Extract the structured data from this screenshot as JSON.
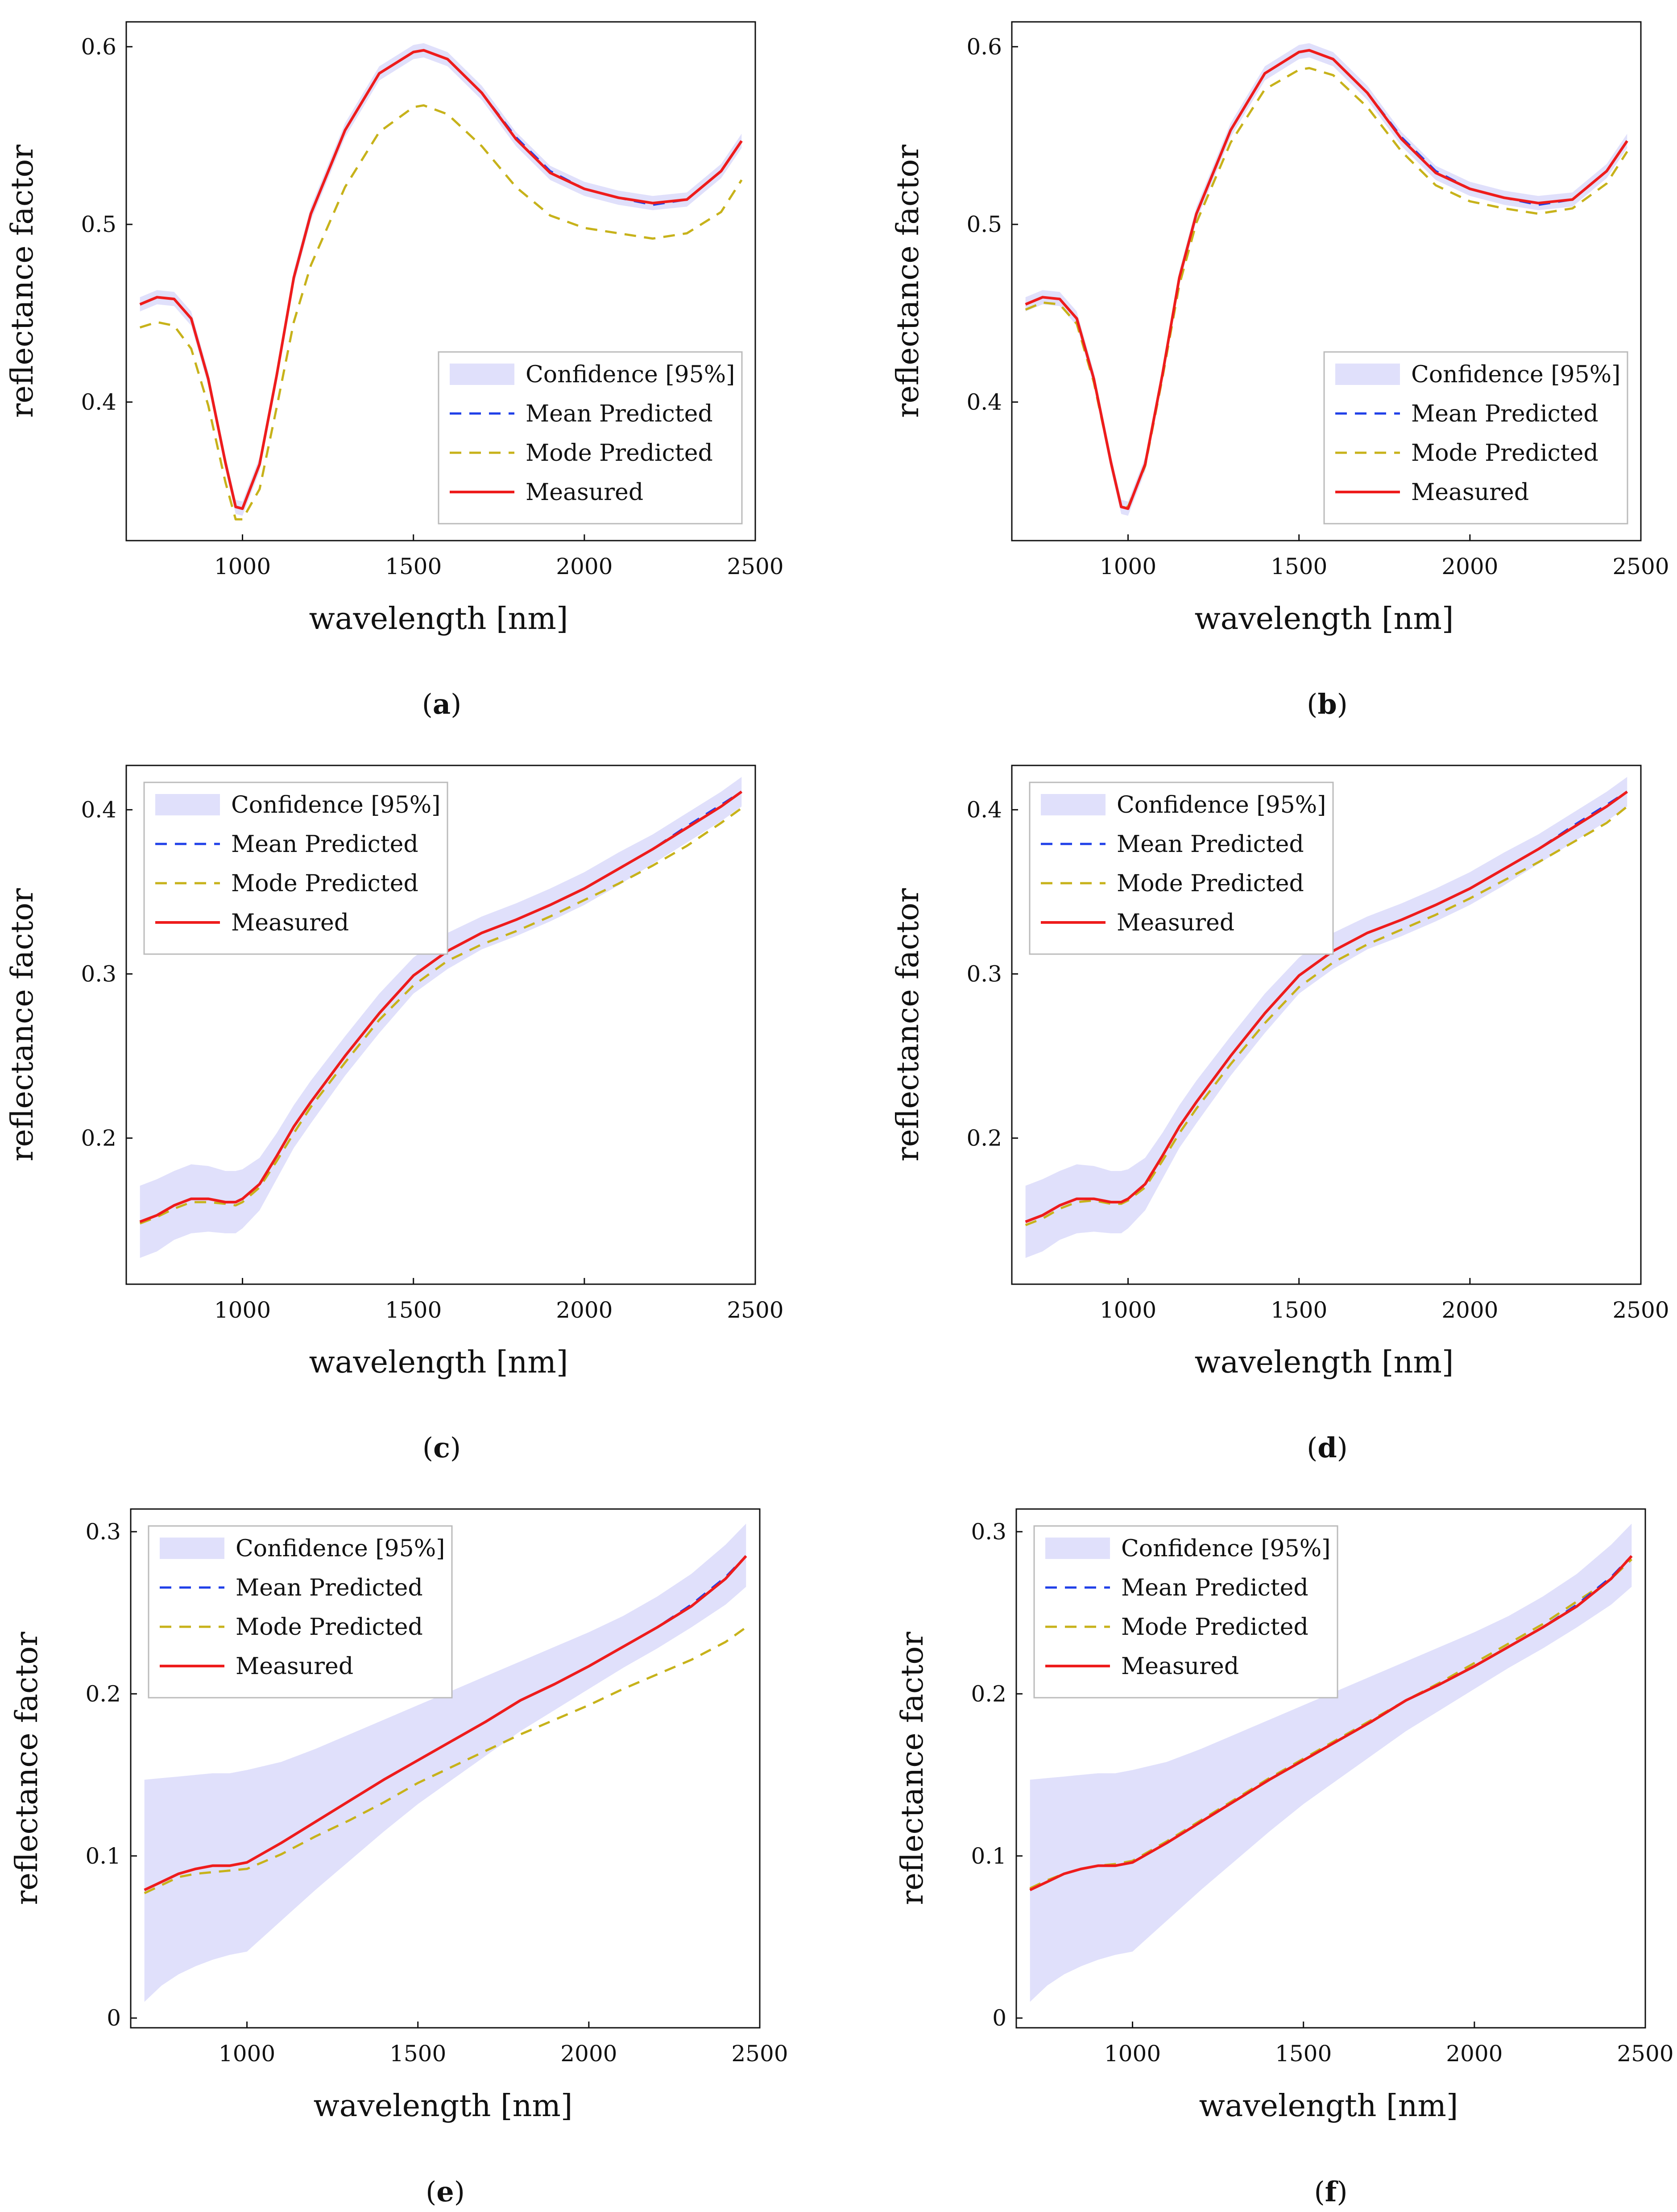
{
  "colors": {
    "confidence": "#e0e0fb",
    "mean": "#1f3fe8",
    "mode": "#c7b21a",
    "measured": "#ee1c1c",
    "axis": "#111111"
  },
  "chart_data": [
    {
      "type": "line",
      "caption_letter": "a",
      "xlabel": "wavelength [nm]",
      "ylabel": "reflectance factor",
      "xlim": [
        660,
        2500
      ],
      "ylim": [
        0.322,
        0.614
      ],
      "xticks": [
        1000,
        1500,
        2000,
        2500
      ],
      "yticks": [
        0.4,
        0.5,
        0.6
      ],
      "ytick_labels": [
        "0.4",
        "0.5",
        "0.6"
      ],
      "legend_position": "bottom-right",
      "legend": [
        "Confidence [95%]",
        "Mean Predicted",
        "Mode Predicted",
        "Measured"
      ],
      "x": [
        700,
        750,
        800,
        850,
        900,
        950,
        980,
        1000,
        1050,
        1100,
        1150,
        1200,
        1300,
        1400,
        1500,
        1530,
        1600,
        1700,
        1800,
        1900,
        2000,
        2100,
        2200,
        2300,
        2400,
        2460
      ],
      "series": [
        {
          "name": "Measured",
          "values": [
            0.455,
            0.459,
            0.458,
            0.447,
            0.413,
            0.366,
            0.341,
            0.34,
            0.365,
            0.415,
            0.47,
            0.506,
            0.553,
            0.585,
            0.597,
            0.598,
            0.593,
            0.574,
            0.548,
            0.529,
            0.52,
            0.515,
            0.512,
            0.514,
            0.53,
            0.547
          ]
        },
        {
          "name": "Mean Predicted",
          "values": [
            0.455,
            0.459,
            0.458,
            0.447,
            0.413,
            0.366,
            0.341,
            0.34,
            0.365,
            0.415,
            0.47,
            0.506,
            0.553,
            0.585,
            0.597,
            0.598,
            0.593,
            0.574,
            0.549,
            0.53,
            0.52,
            0.515,
            0.511,
            0.514,
            0.53,
            0.547
          ]
        },
        {
          "name": "Mode Predicted",
          "values": [
            0.442,
            0.445,
            0.443,
            0.43,
            0.398,
            0.355,
            0.334,
            0.334,
            0.351,
            0.397,
            0.445,
            0.477,
            0.521,
            0.552,
            0.566,
            0.567,
            0.562,
            0.544,
            0.521,
            0.505,
            0.498,
            0.495,
            0.492,
            0.495,
            0.507,
            0.525
          ]
        }
      ],
      "confidence_halfwidth": [
        0.004,
        0.004,
        0.004,
        0.004,
        0.004,
        0.004,
        0.004,
        0.004,
        0.004,
        0.004,
        0.004,
        0.004,
        0.004,
        0.004,
        0.004,
        0.004,
        0.004,
        0.004,
        0.004,
        0.004,
        0.004,
        0.004,
        0.004,
        0.004,
        0.004,
        0.004
      ]
    },
    {
      "type": "line",
      "caption_letter": "b",
      "xlabel": "wavelength [nm]",
      "ylabel": "reflectance factor",
      "xlim": [
        660,
        2500
      ],
      "ylim": [
        0.322,
        0.614
      ],
      "xticks": [
        1000,
        1500,
        2000,
        2500
      ],
      "yticks": [
        0.4,
        0.5,
        0.6
      ],
      "ytick_labels": [
        "0.4",
        "0.5",
        "0.6"
      ],
      "legend_position": "bottom-right",
      "legend": [
        "Confidence [95%]",
        "Mean Predicted",
        "Mode Predicted",
        "Measured"
      ],
      "x": [
        700,
        750,
        800,
        850,
        900,
        950,
        980,
        1000,
        1050,
        1100,
        1150,
        1200,
        1300,
        1400,
        1500,
        1530,
        1600,
        1700,
        1800,
        1900,
        2000,
        2100,
        2200,
        2300,
        2400,
        2460
      ],
      "series": [
        {
          "name": "Measured",
          "values": [
            0.455,
            0.459,
            0.458,
            0.447,
            0.413,
            0.366,
            0.341,
            0.34,
            0.365,
            0.415,
            0.47,
            0.506,
            0.553,
            0.585,
            0.597,
            0.598,
            0.593,
            0.574,
            0.548,
            0.529,
            0.52,
            0.515,
            0.512,
            0.514,
            0.53,
            0.547
          ]
        },
        {
          "name": "Mean Predicted",
          "values": [
            0.455,
            0.459,
            0.458,
            0.447,
            0.413,
            0.366,
            0.341,
            0.34,
            0.365,
            0.415,
            0.47,
            0.506,
            0.553,
            0.585,
            0.597,
            0.598,
            0.593,
            0.574,
            0.549,
            0.53,
            0.52,
            0.515,
            0.511,
            0.514,
            0.53,
            0.547
          ]
        },
        {
          "name": "Mode Predicted",
          "values": [
            0.452,
            0.456,
            0.455,
            0.444,
            0.411,
            0.366,
            0.341,
            0.341,
            0.364,
            0.413,
            0.466,
            0.501,
            0.546,
            0.576,
            0.587,
            0.588,
            0.584,
            0.566,
            0.541,
            0.522,
            0.513,
            0.509,
            0.506,
            0.509,
            0.523,
            0.541
          ]
        }
      ],
      "confidence_halfwidth": [
        0.004,
        0.004,
        0.004,
        0.004,
        0.004,
        0.004,
        0.004,
        0.004,
        0.004,
        0.004,
        0.004,
        0.004,
        0.004,
        0.004,
        0.004,
        0.004,
        0.004,
        0.004,
        0.004,
        0.004,
        0.004,
        0.004,
        0.004,
        0.004,
        0.004,
        0.004
      ]
    },
    {
      "type": "line",
      "caption_letter": "c",
      "xlabel": "wavelength [nm]",
      "ylabel": "reflectance factor",
      "xlim": [
        660,
        2500
      ],
      "ylim": [
        0.111,
        0.427
      ],
      "xticks": [
        1000,
        1500,
        2000,
        2500
      ],
      "yticks": [
        0.2,
        0.3,
        0.4
      ],
      "ytick_labels": [
        "0.2",
        "0.3",
        "0.4"
      ],
      "legend_position": "top-left",
      "legend": [
        "Confidence [95%]",
        "Mean Predicted",
        "Mode Predicted",
        "Measured"
      ],
      "x": [
        700,
        750,
        800,
        850,
        900,
        950,
        980,
        1000,
        1050,
        1100,
        1150,
        1200,
        1300,
        1400,
        1500,
        1600,
        1700,
        1800,
        1900,
        2000,
        2100,
        2200,
        2300,
        2400,
        2460
      ],
      "series": [
        {
          "name": "Measured",
          "values": [
            0.149,
            0.153,
            0.159,
            0.163,
            0.163,
            0.161,
            0.161,
            0.163,
            0.172,
            0.189,
            0.207,
            0.222,
            0.25,
            0.276,
            0.299,
            0.314,
            0.325,
            0.333,
            0.342,
            0.352,
            0.364,
            0.376,
            0.389,
            0.402,
            0.411
          ]
        },
        {
          "name": "Mean Predicted",
          "values": [
            0.149,
            0.153,
            0.159,
            0.163,
            0.163,
            0.161,
            0.161,
            0.163,
            0.172,
            0.189,
            0.207,
            0.222,
            0.25,
            0.276,
            0.299,
            0.314,
            0.325,
            0.333,
            0.342,
            0.352,
            0.364,
            0.376,
            0.39,
            0.403,
            0.411
          ]
        },
        {
          "name": "Mode Predicted",
          "values": [
            0.148,
            0.152,
            0.157,
            0.161,
            0.161,
            0.16,
            0.159,
            0.161,
            0.17,
            0.186,
            0.203,
            0.219,
            0.246,
            0.272,
            0.293,
            0.308,
            0.318,
            0.326,
            0.335,
            0.345,
            0.355,
            0.366,
            0.378,
            0.392,
            0.401
          ]
        }
      ],
      "confidence_halfwidth": [
        0.022,
        0.022,
        0.021,
        0.021,
        0.02,
        0.019,
        0.019,
        0.018,
        0.016,
        0.014,
        0.013,
        0.013,
        0.012,
        0.012,
        0.011,
        0.011,
        0.01,
        0.01,
        0.01,
        0.01,
        0.01,
        0.009,
        0.009,
        0.009,
        0.009
      ]
    },
    {
      "type": "line",
      "caption_letter": "d",
      "xlabel": "wavelength [nm]",
      "ylabel": "reflectance factor",
      "xlim": [
        660,
        2500
      ],
      "ylim": [
        0.111,
        0.427
      ],
      "xticks": [
        1000,
        1500,
        2000,
        2500
      ],
      "yticks": [
        0.2,
        0.3,
        0.4
      ],
      "ytick_labels": [
        "0.2",
        "0.3",
        "0.4"
      ],
      "legend_position": "top-left",
      "legend": [
        "Confidence [95%]",
        "Mean Predicted",
        "Mode Predicted",
        "Measured"
      ],
      "x": [
        700,
        750,
        800,
        850,
        900,
        950,
        980,
        1000,
        1050,
        1100,
        1150,
        1200,
        1300,
        1400,
        1500,
        1600,
        1700,
        1800,
        1900,
        2000,
        2100,
        2200,
        2300,
        2400,
        2460
      ],
      "series": [
        {
          "name": "Measured",
          "values": [
            0.149,
            0.153,
            0.159,
            0.163,
            0.163,
            0.161,
            0.161,
            0.163,
            0.172,
            0.189,
            0.207,
            0.222,
            0.25,
            0.276,
            0.299,
            0.314,
            0.325,
            0.333,
            0.342,
            0.352,
            0.364,
            0.376,
            0.389,
            0.402,
            0.411
          ]
        },
        {
          "name": "Mean Predicted",
          "values": [
            0.149,
            0.153,
            0.159,
            0.163,
            0.163,
            0.161,
            0.161,
            0.163,
            0.172,
            0.189,
            0.207,
            0.222,
            0.25,
            0.276,
            0.299,
            0.314,
            0.325,
            0.333,
            0.342,
            0.352,
            0.364,
            0.376,
            0.39,
            0.403,
            0.411
          ]
        },
        {
          "name": "Mode Predicted",
          "values": [
            0.147,
            0.151,
            0.157,
            0.161,
            0.162,
            0.16,
            0.16,
            0.162,
            0.17,
            0.186,
            0.203,
            0.218,
            0.245,
            0.27,
            0.292,
            0.307,
            0.318,
            0.327,
            0.336,
            0.346,
            0.357,
            0.368,
            0.38,
            0.392,
            0.402
          ]
        }
      ],
      "confidence_halfwidth": [
        0.022,
        0.022,
        0.021,
        0.021,
        0.02,
        0.019,
        0.019,
        0.018,
        0.016,
        0.014,
        0.013,
        0.013,
        0.012,
        0.012,
        0.011,
        0.011,
        0.01,
        0.01,
        0.01,
        0.01,
        0.01,
        0.009,
        0.009,
        0.009,
        0.009
      ]
    },
    {
      "type": "line",
      "caption_letter": "e",
      "xlabel": "wavelength [nm]",
      "ylabel": "reflectance factor",
      "xlim": [
        660,
        2500
      ],
      "ylim": [
        -0.006,
        0.314
      ],
      "xticks": [
        1000,
        1500,
        2000,
        2500
      ],
      "yticks": [
        0,
        0.1,
        0.2,
        0.3
      ],
      "ytick_labels": [
        "0",
        "0.1",
        "0.2",
        "0.3"
      ],
      "legend_position": "top-left",
      "legend": [
        "Confidence [95%]",
        "Mean Predicted",
        "Mode Predicted",
        "Measured"
      ],
      "x": [
        700,
        750,
        800,
        850,
        900,
        950,
        1000,
        1100,
        1200,
        1300,
        1400,
        1500,
        1600,
        1700,
        1800,
        1900,
        2000,
        2100,
        2200,
        2300,
        2400,
        2460
      ],
      "series": [
        {
          "name": "Measured",
          "values": [
            0.079,
            0.084,
            0.089,
            0.092,
            0.094,
            0.094,
            0.096,
            0.108,
            0.121,
            0.134,
            0.147,
            0.159,
            0.171,
            0.183,
            0.196,
            0.206,
            0.217,
            0.229,
            0.241,
            0.254,
            0.271,
            0.285
          ]
        },
        {
          "name": "Mean Predicted",
          "values": [
            0.079,
            0.084,
            0.089,
            0.092,
            0.094,
            0.094,
            0.096,
            0.108,
            0.121,
            0.134,
            0.147,
            0.159,
            0.171,
            0.183,
            0.196,
            0.206,
            0.217,
            0.229,
            0.241,
            0.255,
            0.272,
            0.285
          ]
        },
        {
          "name": "Mode Predicted",
          "values": [
            0.077,
            0.082,
            0.087,
            0.089,
            0.09,
            0.091,
            0.092,
            0.101,
            0.112,
            0.122,
            0.133,
            0.145,
            0.155,
            0.165,
            0.175,
            0.184,
            0.193,
            0.203,
            0.212,
            0.221,
            0.232,
            0.241
          ]
        }
      ],
      "confidence_lower": [
        0.01,
        0.02,
        0.027,
        0.032,
        0.036,
        0.039,
        0.041,
        0.06,
        0.079,
        0.097,
        0.115,
        0.132,
        0.147,
        0.162,
        0.177,
        0.19,
        0.203,
        0.216,
        0.228,
        0.241,
        0.255,
        0.266
      ],
      "confidence_upper": [
        0.147,
        0.148,
        0.149,
        0.15,
        0.151,
        0.151,
        0.153,
        0.158,
        0.166,
        0.175,
        0.184,
        0.193,
        0.202,
        0.211,
        0.22,
        0.229,
        0.238,
        0.248,
        0.26,
        0.274,
        0.292,
        0.305
      ]
    },
    {
      "type": "line",
      "caption_letter": "f",
      "xlabel": "wavelength [nm]",
      "ylabel": "reflectance factor",
      "xlim": [
        660,
        2500
      ],
      "ylim": [
        -0.006,
        0.314
      ],
      "xticks": [
        1000,
        1500,
        2000,
        2500
      ],
      "yticks": [
        0,
        0.1,
        0.2,
        0.3
      ],
      "ytick_labels": [
        "0",
        "0.1",
        "0.2",
        "0.3"
      ],
      "legend_position": "top-left",
      "legend": [
        "Confidence [95%]",
        "Mean Predicted",
        "Mode Predicted",
        "Measured"
      ],
      "x": [
        700,
        750,
        800,
        850,
        900,
        950,
        1000,
        1100,
        1200,
        1300,
        1400,
        1500,
        1600,
        1700,
        1800,
        1900,
        2000,
        2100,
        2200,
        2300,
        2400,
        2460
      ],
      "series": [
        {
          "name": "Measured",
          "values": [
            0.079,
            0.084,
            0.089,
            0.092,
            0.094,
            0.094,
            0.096,
            0.108,
            0.121,
            0.134,
            0.147,
            0.159,
            0.171,
            0.183,
            0.196,
            0.206,
            0.217,
            0.229,
            0.241,
            0.254,
            0.271,
            0.285
          ]
        },
        {
          "name": "Mean Predicted",
          "values": [
            0.079,
            0.084,
            0.089,
            0.092,
            0.094,
            0.094,
            0.096,
            0.108,
            0.121,
            0.134,
            0.147,
            0.159,
            0.171,
            0.183,
            0.196,
            0.206,
            0.217,
            0.229,
            0.241,
            0.255,
            0.272,
            0.285
          ]
        },
        {
          "name": "Mode Predicted",
          "values": [
            0.08,
            0.085,
            0.089,
            0.092,
            0.094,
            0.095,
            0.097,
            0.109,
            0.122,
            0.135,
            0.148,
            0.16,
            0.172,
            0.184,
            0.196,
            0.207,
            0.219,
            0.231,
            0.243,
            0.257,
            0.271,
            0.283
          ]
        }
      ],
      "confidence_lower": [
        0.01,
        0.02,
        0.027,
        0.032,
        0.036,
        0.039,
        0.041,
        0.06,
        0.079,
        0.097,
        0.115,
        0.132,
        0.147,
        0.162,
        0.177,
        0.19,
        0.203,
        0.216,
        0.228,
        0.241,
        0.255,
        0.266
      ],
      "confidence_upper": [
        0.147,
        0.148,
        0.149,
        0.15,
        0.151,
        0.151,
        0.153,
        0.158,
        0.166,
        0.175,
        0.184,
        0.193,
        0.202,
        0.211,
        0.22,
        0.229,
        0.238,
        0.248,
        0.26,
        0.274,
        0.292,
        0.305
      ]
    }
  ]
}
